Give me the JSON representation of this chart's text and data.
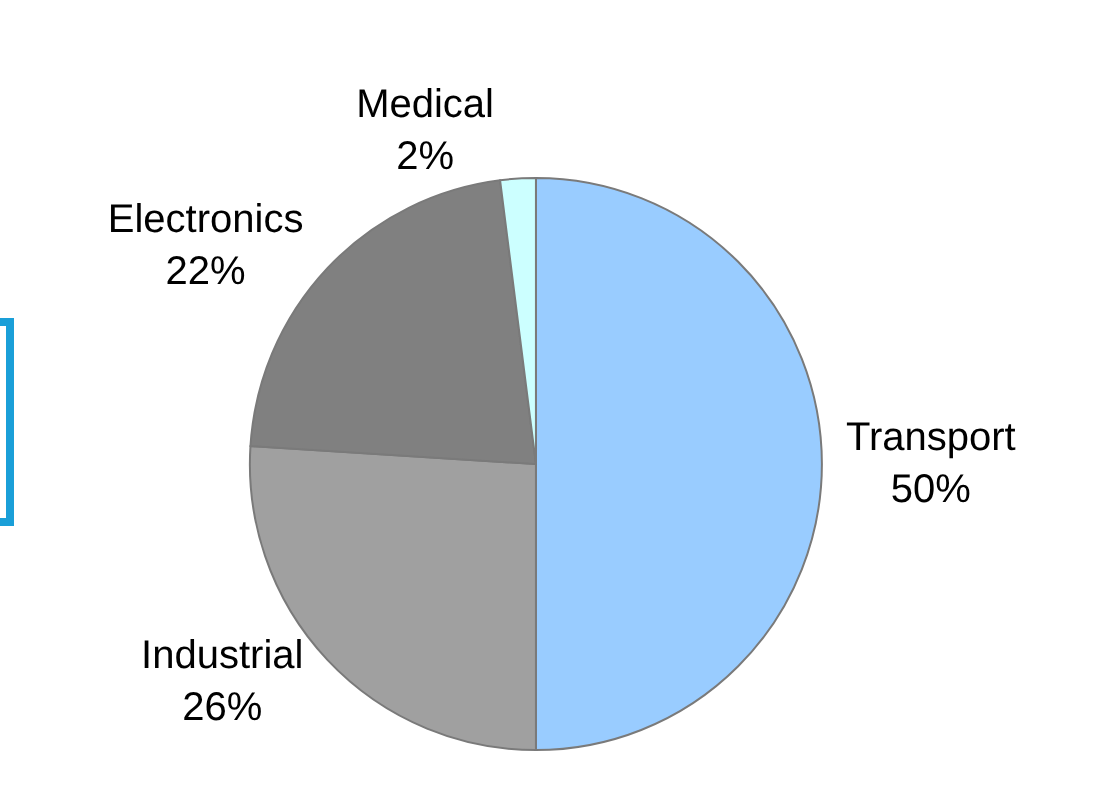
{
  "chart_data": {
    "type": "pie",
    "categories": [
      "Transport",
      "Industrial",
      "Electronics",
      "Medical"
    ],
    "values": [
      50,
      26,
      22,
      2
    ],
    "colors": [
      "#99ccff",
      "#a0a0a0",
      "#808080",
      "#ccffff"
    ],
    "value_labels": [
      "50%",
      "26%",
      "22%",
      "2%"
    ],
    "legend": false
  }
}
